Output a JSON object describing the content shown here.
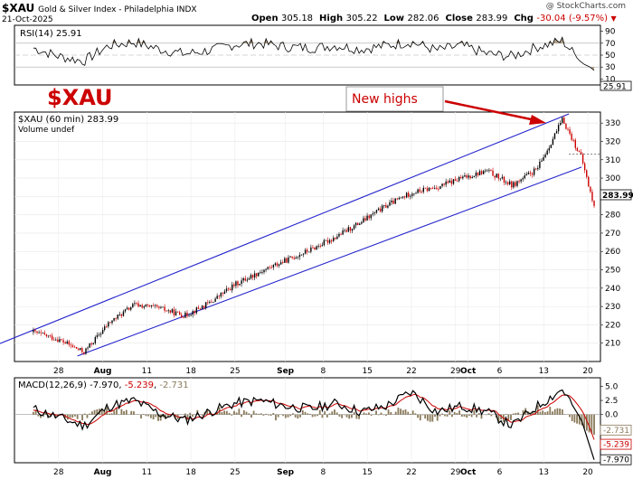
{
  "header": {
    "symbol": "$XAU",
    "name": "Gold & Silver Index - Philadelphia  INDX",
    "date": "21-Oct-2025",
    "watermark": "@ StockCharts.com",
    "open_label": "Open",
    "open": "305.18",
    "high_label": "High",
    "high": "305.22",
    "low_label": "Low",
    "low": "282.06",
    "close_label": "Close",
    "close": "283.99",
    "chg_label": "Chg",
    "chg": "-30.04 (-9.57%)",
    "chg_arrow": "▼"
  },
  "rsi": {
    "legend": "RSI(14) 25.91",
    "current_label": "25.91",
    "tick_labels": [
      "90",
      "70",
      "50",
      "30",
      "10"
    ]
  },
  "price": {
    "legend": "$XAU (60 min) 283.99",
    "volume_legend": "Volume undef",
    "big_label": "$XAU",
    "annotation": "New highs",
    "current_label": "283.99",
    "tick_labels": [
      "330",
      "320",
      "310",
      "300",
      "290",
      "280",
      "270",
      "260",
      "250",
      "240",
      "230",
      "220",
      "210"
    ]
  },
  "macd": {
    "legend_prefix": "MACD(12,26,9)",
    "macd_value": "-7.970",
    "signal_value": "-5.239",
    "hist_value": "-2.731",
    "tick_labels": [
      "5.0",
      "2.5",
      "0.0",
      "-2.5",
      "-5.0"
    ],
    "value_tags": [
      "-2.731",
      "-5.239",
      "-7.970"
    ]
  },
  "x_axis": {
    "labels": [
      "28",
      "Aug",
      "11",
      "18",
      "25",
      "Sep",
      "8",
      "15",
      "22",
      "29",
      "Oct",
      "6",
      "13",
      "20"
    ]
  },
  "colors": {
    "title_red": "#cc0000",
    "up": "#000000",
    "down": "#cc0000",
    "trend_channel": "#2222cc",
    "rsi_line": "#000000",
    "rsi_fill": "#a08a6a",
    "macd_line": "#000000",
    "signal_line": "#cc0000",
    "histogram": "#8a7a5a"
  },
  "chart_data": [
    {
      "type": "line",
      "title": "RSI(14) 25.91",
      "ylim": [
        0,
        100
      ],
      "ref_lines": [
        30,
        50,
        70
      ],
      "x": [
        "Jul 24",
        "Jul 28",
        "Aug 1",
        "Aug 5",
        "Aug 9",
        "Aug 13",
        "Aug 17",
        "Aug 21",
        "Aug 25",
        "Aug 29",
        "Sep 2",
        "Sep 6",
        "Sep 10",
        "Sep 14",
        "Sep 18",
        "Sep 22",
        "Sep 26",
        "Sep 30",
        "Oct 4",
        "Oct 8",
        "Oct 12",
        "Oct 16",
        "Oct 19",
        "Oct 21"
      ],
      "values": [
        62,
        48,
        40,
        66,
        72,
        60,
        52,
        58,
        68,
        70,
        64,
        62,
        66,
        60,
        66,
        72,
        58,
        66,
        52,
        48,
        64,
        74,
        38,
        26
      ]
    },
    {
      "type": "candlestick",
      "title": "$XAU (60 min) 283.99",
      "ylim": [
        200,
        336
      ],
      "x": [
        "Jul 24",
        "Jul 28",
        "Aug 1",
        "Aug 5",
        "Aug 9",
        "Aug 13",
        "Aug 17",
        "Aug 21",
        "Aug 25",
        "Aug 29",
        "Sep 2",
        "Sep 6",
        "Sep 10",
        "Sep 14",
        "Sep 18",
        "Sep 22",
        "Sep 26",
        "Sep 30",
        "Oct 4",
        "Oct 8",
        "Oct 12",
        "Oct 16",
        "Oct 19",
        "Oct 21"
      ],
      "close": [
        216,
        212,
        205,
        221,
        231,
        229,
        225,
        232,
        242,
        249,
        255,
        261,
        268,
        276,
        285,
        292,
        295,
        300,
        304,
        296,
        305,
        332,
        311,
        284
      ],
      "trend_channel": {
        "upper": {
          "start": [
            "Jul 21",
            213
          ],
          "end": [
            "Oct 17",
            335
          ]
        },
        "lower": {
          "start": [
            "Jul 31",
            203
          ],
          "end": [
            "Oct 19",
            306
          ]
        }
      },
      "annotation": "New highs"
    },
    {
      "type": "line",
      "title": "MACD(12,26,9) -7.970, -5.239, -2.731",
      "ylim": [
        -8.5,
        6.5
      ],
      "x": [
        "Jul 24",
        "Jul 28",
        "Aug 1",
        "Aug 5",
        "Aug 9",
        "Aug 13",
        "Aug 17",
        "Aug 21",
        "Aug 25",
        "Aug 29",
        "Sep 2",
        "Sep 6",
        "Sep 10",
        "Sep 14",
        "Sep 18",
        "Sep 22",
        "Sep 26",
        "Sep 30",
        "Oct 4",
        "Oct 8",
        "Oct 12",
        "Oct 16",
        "Oct 19",
        "Oct 21"
      ],
      "series": [
        {
          "name": "MACD",
          "values": [
            1.0,
            -0.5,
            -2.0,
            1.5,
            2.5,
            0.2,
            -1.0,
            0.5,
            2.0,
            2.5,
            1.5,
            1.0,
            2.0,
            0.5,
            1.5,
            4.0,
            0.5,
            1.5,
            0.5,
            -2.0,
            1.5,
            4.5,
            -1.0,
            -7.97
          ]
        },
        {
          "name": "Signal",
          "values": [
            0.8,
            0.0,
            -1.5,
            0.5,
            2.0,
            1.0,
            -0.5,
            0.0,
            1.5,
            2.2,
            1.8,
            1.2,
            1.6,
            1.0,
            1.2,
            3.0,
            1.5,
            1.2,
            0.8,
            -1.0,
            0.5,
            3.5,
            1.0,
            -5.239
          ]
        },
        {
          "name": "Histogram",
          "values": [
            0.2,
            -0.5,
            -0.5,
            1.0,
            0.5,
            -0.8,
            -0.5,
            0.5,
            0.5,
            0.3,
            -0.3,
            -0.2,
            0.4,
            -0.5,
            0.3,
            1.0,
            -1.0,
            0.3,
            -0.3,
            -1.0,
            1.0,
            1.0,
            -2.0,
            -2.731
          ]
        }
      ]
    }
  ]
}
